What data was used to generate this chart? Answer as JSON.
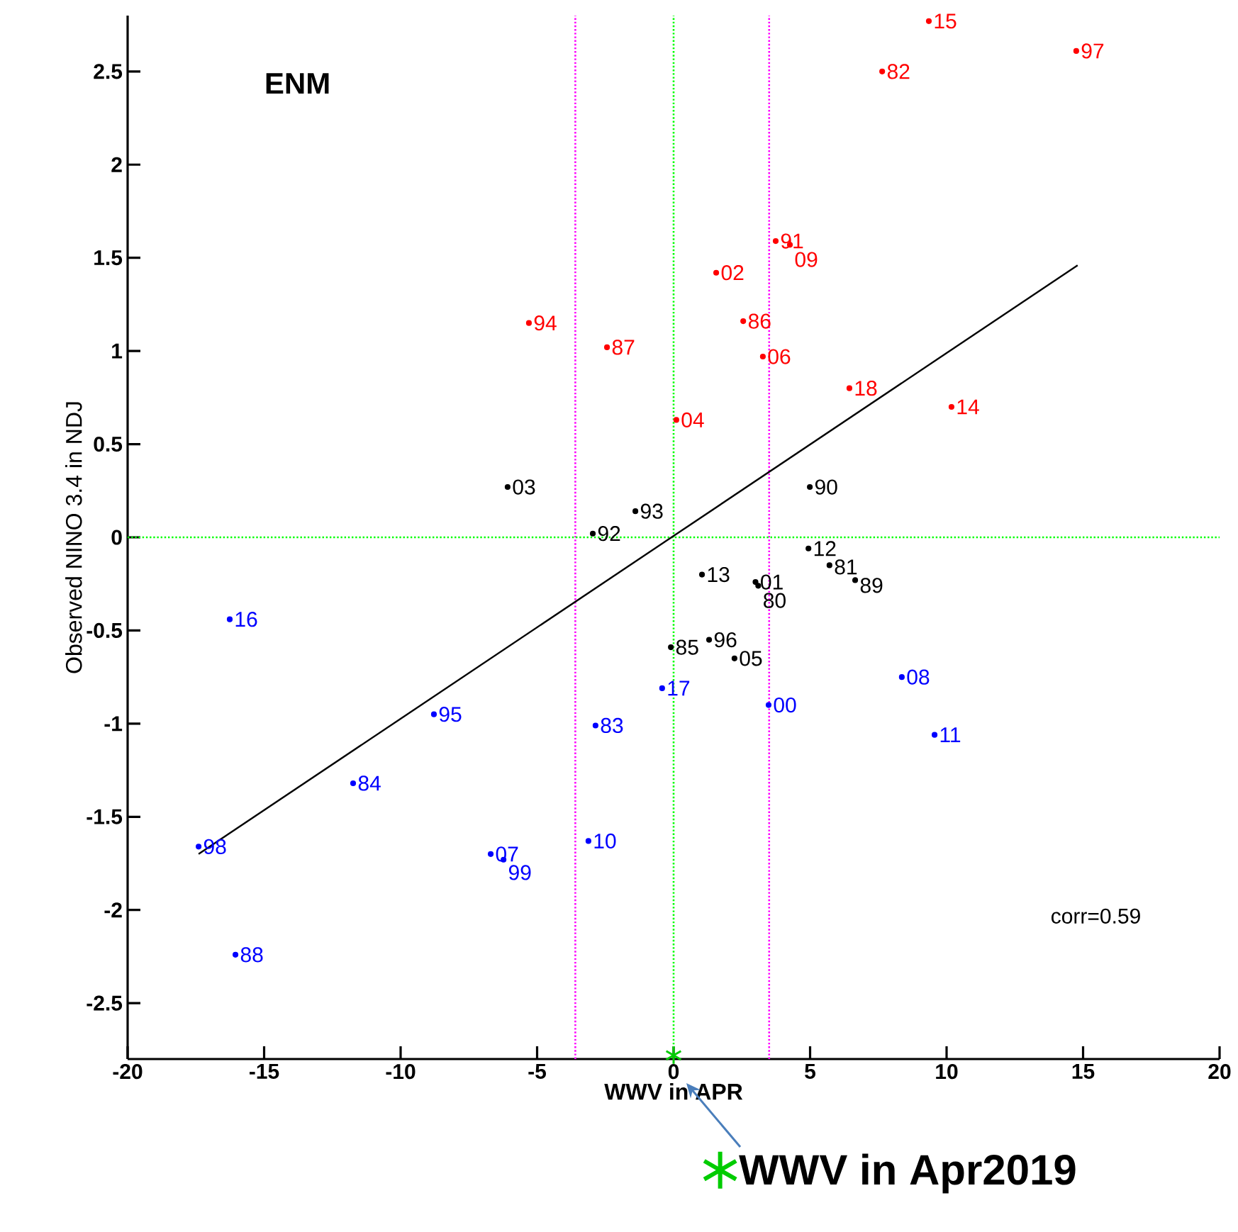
{
  "chart_data": {
    "type": "scatter",
    "xlabel": "WWV in APR",
    "ylabel": "Observed NINO 3.4 in NDJ",
    "annotations": [
      "ENM",
      "corr=0.59",
      {
        "text": "15",
        "x": 9.35,
        "y": 2.77
      },
      {
        "text": "97",
        "x": 14.75,
        "y": 2.61
      },
      {
        "text": "82",
        "x": 7.64,
        "y": 2.5
      },
      {
        "text": "91",
        "x": 3.74,
        "y": 1.59
      },
      {
        "text": "09",
        "x": 4.26,
        "y": 1.57
      },
      {
        "text": "02",
        "x": 1.56,
        "y": 1.42
      },
      {
        "text": "86",
        "x": 2.55,
        "y": 1.16
      },
      {
        "text": "06",
        "x": 3.27,
        "y": 0.97
      },
      {
        "text": "18",
        "x": 6.44,
        "y": 0.8
      },
      {
        "text": "14",
        "x": 10.18,
        "y": 0.7
      },
      {
        "text": "04",
        "x": 0.1,
        "y": 0.63
      },
      {
        "text": "94",
        "x": -5.3,
        "y": 1.15
      },
      {
        "text": "87",
        "x": -2.44,
        "y": 1.02
      },
      {
        "text": "03",
        "x": -6.08,
        "y": 0.27
      },
      {
        "text": "92",
        "x": -2.96,
        "y": 0.02
      },
      {
        "text": "93",
        "x": -1.4,
        "y": 0.14
      },
      {
        "text": "90",
        "x": 4.99,
        "y": 0.27
      },
      {
        "text": "12",
        "x": 4.94,
        "y": -0.06
      },
      {
        "text": "81",
        "x": 5.71,
        "y": -0.15
      },
      {
        "text": "89",
        "x": 6.65,
        "y": -0.23
      },
      {
        "text": "13",
        "x": 1.04,
        "y": -0.2
      },
      {
        "text": "01",
        "x": 3.0,
        "y": -0.24
      },
      {
        "text": "80",
        "x": 3.1,
        "y": -0.26
      },
      {
        "text": "85",
        "x": -0.1,
        "y": -0.59
      },
      {
        "text": "96",
        "x": 1.3,
        "y": -0.55
      },
      {
        "text": "05",
        "x": 2.23,
        "y": -0.65
      },
      {
        "text": "16",
        "x": -16.26,
        "y": -0.44
      },
      {
        "text": "95",
        "x": -8.78,
        "y": -0.95
      },
      {
        "text": "84",
        "x": -11.74,
        "y": -1.32
      },
      {
        "text": "98",
        "x": -17.4,
        "y": -1.66
      },
      {
        "text": "07",
        "x": -6.7,
        "y": -1.7
      },
      {
        "text": "99",
        "x": -6.23,
        "y": -1.73
      },
      {
        "text": "88",
        "x": -16.05,
        "y": -2.24
      },
      {
        "text": "83",
        "x": -2.86,
        "y": -1.01
      },
      {
        "text": "10",
        "x": -3.12,
        "y": -1.63
      },
      {
        "text": "17",
        "x": -0.42,
        "y": -0.81
      },
      {
        "text": "08",
        "x": 8.36,
        "y": -0.75
      },
      {
        "text": "00",
        "x": 3.48,
        "y": -0.9
      },
      {
        "text": "11",
        "x": 9.56,
        "y": -1.06
      }
    ],
    "xlim": [
      -20,
      20
    ],
    "ylim": [
      -2.8,
      2.8
    ],
    "xticks": [
      -20,
      -15,
      -10,
      -5,
      0,
      5,
      10,
      15,
      20
    ],
    "yticks": [
      -2.5,
      -2,
      -1.5,
      -1,
      -0.5,
      0,
      0.5,
      1,
      1.5,
      2,
      2.5
    ],
    "grid": false,
    "legend": "bottom",
    "ref_lines": [
      {
        "axis": "x",
        "value": -3.6,
        "color": "#ff00ff",
        "line_style": "dotted"
      },
      {
        "axis": "x",
        "value": 3.5,
        "color": "#ff00ff",
        "line_style": "dotted"
      },
      {
        "axis": "x",
        "value": 0,
        "color": "#00ff00",
        "line_style": "dotted"
      },
      {
        "axis": "y",
        "value": 0,
        "color": "#00ff00",
        "line_style": "dotted"
      }
    ],
    "series": [
      {
        "marker": "circle",
        "color": "#ff0000",
        "x": [
          9.35,
          14.75,
          7.64,
          3.74,
          4.26,
          1.56,
          2.55,
          3.27,
          6.44,
          10.18,
          0.1,
          -5.3,
          -2.44
        ],
        "values": [
          2.77,
          2.61,
          2.5,
          1.59,
          1.57,
          1.42,
          1.16,
          0.97,
          0.8,
          0.7,
          0.63,
          1.15,
          1.02
        ]
      },
      {
        "marker": "circle",
        "color": "#000000",
        "x": [
          -6.08,
          -2.96,
          -1.4,
          4.99,
          4.94,
          5.71,
          6.65,
          1.04,
          3.0,
          3.1,
          -0.1,
          1.3,
          2.23
        ],
        "values": [
          0.27,
          0.02,
          0.14,
          0.27,
          -0.06,
          -0.15,
          -0.23,
          -0.2,
          -0.24,
          -0.26,
          -0.59,
          -0.55,
          -0.65
        ]
      },
      {
        "marker": "circle",
        "color": "#0000ff",
        "x": [
          -16.26,
          -8.78,
          -11.74,
          -17.4,
          -6.7,
          -6.23,
          -16.05,
          -2.86,
          -3.12,
          -0.42,
          8.36,
          3.48,
          9.56
        ],
        "values": [
          -0.44,
          -0.95,
          -1.32,
          -1.66,
          -1.7,
          -1.73,
          -2.24,
          -1.01,
          -1.63,
          -0.81,
          -0.75,
          -0.9,
          -1.06
        ]
      },
      {
        "type": "line",
        "marker": "none",
        "color": "#000000",
        "x": [
          -17.4,
          14.8
        ],
        "values": [
          -1.7,
          1.46
        ]
      },
      {
        "marker": "cross",
        "name": "WWV in Apr2019",
        "color": "#00cc00",
        "x": [
          0
        ],
        "values": [
          -2.78
        ]
      }
    ]
  }
}
